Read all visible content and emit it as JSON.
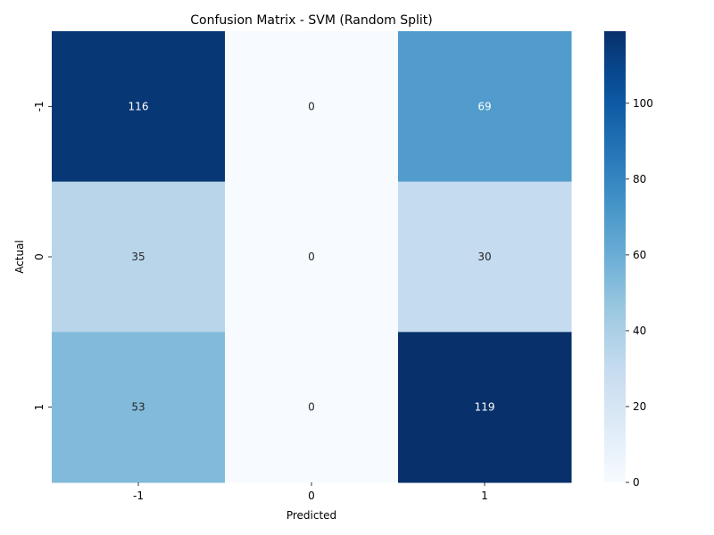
{
  "chart_data": {
    "type": "heatmap",
    "title": "Confusion Matrix - SVM (Random Split)",
    "xlabel": "Predicted",
    "ylabel": "Actual",
    "x_categories": [
      "-1",
      "0",
      "1"
    ],
    "y_categories": [
      "-1",
      "0",
      "1"
    ],
    "values": [
      [
        116,
        0,
        69
      ],
      [
        35,
        0,
        30
      ],
      [
        53,
        0,
        119
      ]
    ],
    "colormap": "Blues",
    "color_range": [
      0,
      119
    ],
    "colorbar_ticks": [
      "0",
      "20",
      "40",
      "60",
      "80",
      "100"
    ],
    "colorbar_tick_values": [
      0,
      20,
      40,
      60,
      80,
      100
    ],
    "colors": {
      "low": "#f7fbff",
      "high": "#08306b"
    }
  }
}
